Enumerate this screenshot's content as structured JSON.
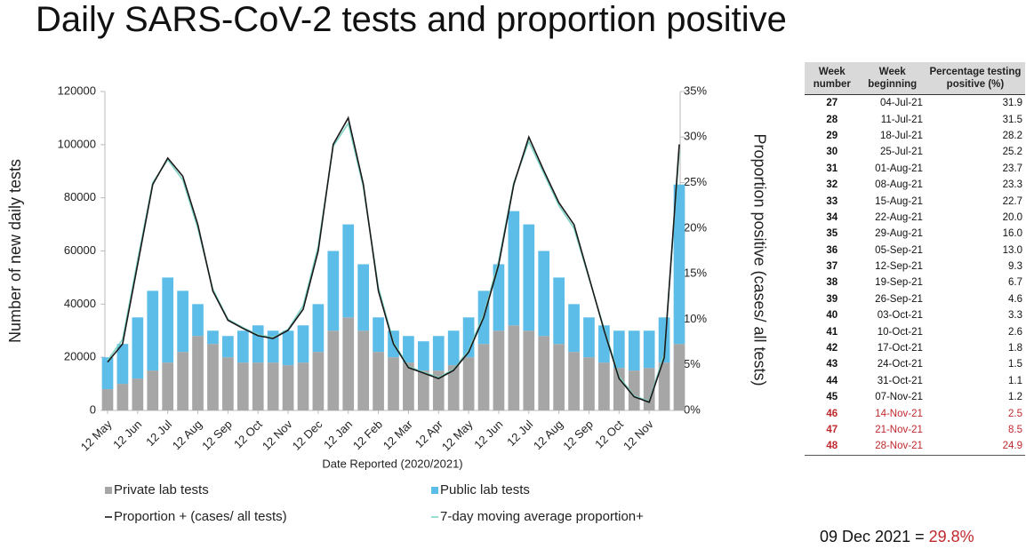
{
  "chart_data": {
    "type": "bar_line",
    "title": "Daily SARS-CoV-2 tests and proportion positive",
    "xlabel": "Date Reported (2020/2021)",
    "ylabel": "Number of new daily tests",
    "y2label": "Proportion positive (cases/ all tests)",
    "categories": [
      "12 May",
      null,
      "12 Jun",
      null,
      "12 Jul",
      null,
      "12 Aug",
      null,
      "12 Sep",
      null,
      "12 Oct",
      null,
      "12 Nov",
      null,
      "12 Dec",
      null,
      "12 Jan",
      null,
      "12 Feb",
      null,
      "12 Mar",
      null,
      "12 Apr",
      null,
      "12 May",
      null,
      "12 Jun",
      null,
      "12 Jul",
      null,
      "12 Aug",
      null,
      "12 Sep",
      null,
      "12 Oct",
      null,
      "12 Nov",
      null,
      null
    ],
    "series": [
      {
        "name": "Private lab tests",
        "color": "#a6a6a6",
        "kind": "bar",
        "stack": true,
        "values": [
          8000,
          10000,
          12000,
          15000,
          18000,
          22000,
          28000,
          25000,
          20000,
          18000,
          18000,
          18000,
          17000,
          18000,
          22000,
          30000,
          35000,
          30000,
          22000,
          20000,
          18000,
          15000,
          15000,
          17000,
          20000,
          25000,
          30000,
          32000,
          30000,
          28000,
          25000,
          22000,
          20000,
          18000,
          16000,
          15000,
          16000,
          18000,
          25000
        ]
      },
      {
        "name": "Public lab tests",
        "color": "#5bbde8",
        "kind": "bar",
        "stack": true,
        "values": [
          12000,
          15000,
          23000,
          30000,
          32000,
          23000,
          12000,
          5000,
          8000,
          12000,
          14000,
          12000,
          13000,
          14000,
          18000,
          30000,
          35000,
          25000,
          13000,
          10000,
          10000,
          11000,
          13000,
          13000,
          15000,
          20000,
          25000,
          43000,
          40000,
          32000,
          25000,
          18000,
          15000,
          14000,
          14000,
          15000,
          14000,
          17000,
          60000
        ]
      },
      {
        "name": "Proportion + (cases/ all tests)",
        "color": "#1a1a1a",
        "kind": "line",
        "axis": "y2",
        "values": [
          5.3,
          7.3,
          16,
          24.8,
          27.7,
          25.7,
          20.4,
          13.1,
          9.9,
          9,
          8.2,
          7.9,
          8.8,
          11.1,
          17.5,
          29.2,
          32.1,
          24.8,
          13.1,
          7.3,
          4.7,
          4.1,
          3.5,
          4.4,
          6.4,
          10.2,
          16,
          24.8,
          30,
          26.3,
          22.8,
          20.4,
          14.6,
          8.8,
          3.5,
          1.5,
          0.9,
          5.8,
          29.2
        ]
      },
      {
        "name": "7-day moving average proportion+",
        "color": "#7fd3c6",
        "kind": "line",
        "axis": "y2",
        "values": [
          5.5,
          7.8,
          16.5,
          25,
          27.5,
          25.3,
          20,
          13.3,
          10,
          9.1,
          8.3,
          8,
          8.9,
          11.5,
          18,
          29,
          31.5,
          24.5,
          13.5,
          7.5,
          4.8,
          4.2,
          3.6,
          4.5,
          6.6,
          10.5,
          16.4,
          25,
          29.5,
          26,
          22.5,
          20,
          14.5,
          9,
          3.7,
          1.6,
          1,
          6.2,
          28.5
        ]
      }
    ],
    "ylim": [
      0,
      120000
    ],
    "yticks": [
      0,
      20000,
      40000,
      60000,
      80000,
      100000,
      120000
    ],
    "y2lim": [
      0,
      35
    ],
    "y2ticks": [
      {
        "value": 0,
        "label": "0%"
      },
      {
        "value": 5,
        "label": "5%"
      },
      {
        "value": 10,
        "label": "10%"
      },
      {
        "value": 15,
        "label": "15%"
      },
      {
        "value": 20,
        "label": "20%"
      },
      {
        "value": 25,
        "label": "25%"
      },
      {
        "value": 30,
        "label": "30%"
      },
      {
        "value": 35,
        "label": "35%"
      }
    ],
    "legend": "bottom"
  },
  "table": {
    "header": [
      "Week number",
      "Week beginning",
      "Percentage testing positive (%)"
    ],
    "rows": [
      [
        27,
        "04-Jul-21",
        "31.9"
      ],
      [
        28,
        "11-Jul-21",
        "31.5"
      ],
      [
        29,
        "18-Jul-21",
        "28.2"
      ],
      [
        30,
        "25-Jul-21",
        "25.2"
      ],
      [
        31,
        "01-Aug-21",
        "23.7"
      ],
      [
        32,
        "08-Aug-21",
        "23.3"
      ],
      [
        33,
        "15-Aug-21",
        "22.7"
      ],
      [
        34,
        "22-Aug-21",
        "20.0"
      ],
      [
        35,
        "29-Aug-21",
        "16.0"
      ],
      [
        36,
        "05-Sep-21",
        "13.0"
      ],
      [
        37,
        "12-Sep-21",
        "9.3"
      ],
      [
        38,
        "19-Sep-21",
        "6.7"
      ],
      [
        39,
        "26-Sep-21",
        "4.6"
      ],
      [
        40,
        "03-Oct-21",
        "3.3"
      ],
      [
        41,
        "10-Oct-21",
        "2.6"
      ],
      [
        42,
        "17-Oct-21",
        "1.8"
      ],
      [
        43,
        "24-Oct-21",
        "1.5"
      ],
      [
        44,
        "31-Oct-21",
        "1.1"
      ],
      [
        45,
        "07-Nov-21",
        "1.2"
      ],
      [
        46,
        "14-Nov-21",
        "2.5"
      ],
      [
        47,
        "21-Nov-21",
        "8.5"
      ],
      [
        48,
        "28-Nov-21",
        "24.9"
      ]
    ]
  },
  "footer": {
    "label": "09 Dec 2021 = ",
    "value": "29.8%"
  }
}
